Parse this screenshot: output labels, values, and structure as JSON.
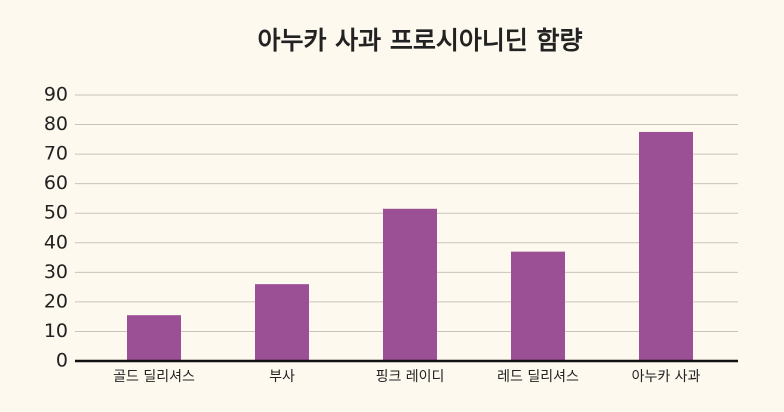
{
  "chart_data": {
    "type": "bar",
    "title": "아누카 사과 프로시아니딘 함량",
    "categories": [
      "골드 딜리셔스",
      "부사",
      "핑크 레이디",
      "레드 딜리셔스",
      "아누카 사과"
    ],
    "values": [
      15.5,
      26,
      51.5,
      37,
      77.5
    ],
    "color": "#9b4f94",
    "ylim": [
      0,
      90
    ],
    "yticks": [
      0,
      10,
      20,
      30,
      40,
      50,
      60,
      70,
      80,
      90
    ],
    "grid": true
  }
}
